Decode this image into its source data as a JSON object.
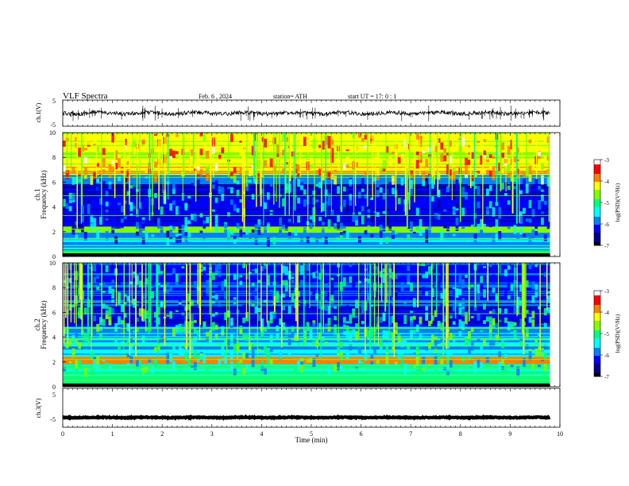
{
  "header": {
    "title": "VLF  Spectra",
    "date": "Feb. 6  , 2024",
    "station": "station= ATH",
    "start_ut": "start  UT  =    17: 0   : 1"
  },
  "chart_data": [
    {
      "type": "line",
      "name": "ch.1 waveform",
      "ylabel": "ch.1(V)",
      "ylim": [
        -5,
        5
      ],
      "yticks": [
        "5",
        "-5"
      ],
      "xlim": [
        0,
        10
      ],
      "baseline": 0
    },
    {
      "type": "heatmap",
      "name": "ch.1 spectrogram",
      "ylabel": "ch.1\nFrequency  (kHz)",
      "ylim": [
        0,
        10
      ],
      "yticks": [
        "0",
        "2",
        "4",
        "6",
        "8",
        "10"
      ],
      "xlim": [
        0,
        10
      ],
      "colorbar": {
        "label": "log(PSD)(V²/Hz)",
        "ticks": [
          "-3",
          "-4",
          "-5",
          "-6",
          "-7"
        ],
        "range": [
          -7,
          -3
        ]
      }
    },
    {
      "type": "heatmap",
      "name": "ch.2 spectrogram",
      "ylabel": "ch.2\nFrequency  (kHz)",
      "ylim": [
        0,
        10
      ],
      "yticks": [
        "0",
        "2",
        "4",
        "6",
        "8",
        "10"
      ],
      "xlim": [
        0,
        10
      ],
      "colorbar": {
        "label": "log(PSD)(V²/Hz)",
        "ticks": [
          "-3",
          "-4",
          "-5",
          "-6",
          "-7"
        ],
        "range": [
          -7,
          -3
        ]
      }
    },
    {
      "type": "line",
      "name": "ch.3 waveform",
      "ylabel": "ch.3(V)",
      "ylim": [
        -5,
        5
      ],
      "yticks": [
        "5",
        "-5"
      ],
      "xlim": [
        0,
        10
      ],
      "baseline": -2.5
    }
  ],
  "x_axis": {
    "label": "Time  (min)",
    "ticks": [
      "0",
      "1",
      "2",
      "3",
      "4",
      "5",
      "6",
      "7",
      "8",
      "9",
      "10"
    ],
    "data_end": 9.8
  },
  "colors": {
    "colormap": [
      "#000000",
      "#00008b",
      "#0000ff",
      "#0080ff",
      "#00ffff",
      "#00ff80",
      "#80ff00",
      "#ffff00",
      "#ff8000",
      "#ff0000",
      "#ffffff"
    ]
  }
}
